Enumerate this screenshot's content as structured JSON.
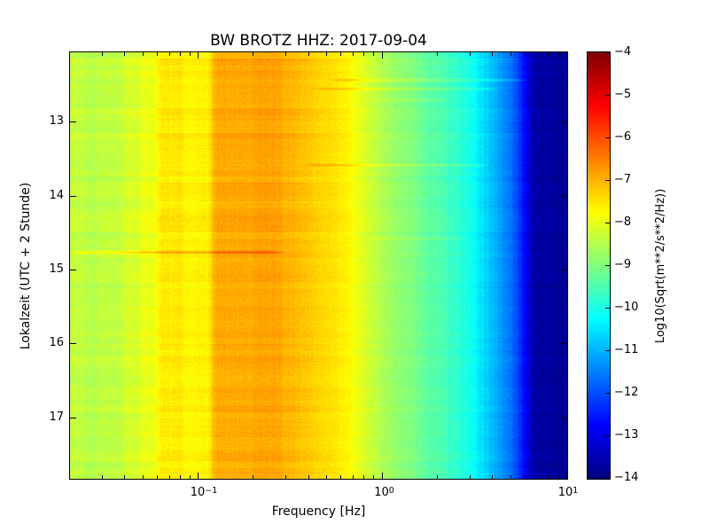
{
  "chart_data": {
    "type": "heatmap",
    "subtype": "seismic-spectrogram",
    "title": "BW BROTZ HHZ: 2017-09-04",
    "xlabel": "Frequency [Hz]",
    "ylabel": "Lokalzeit (UTC + 2 Stunde)",
    "x_scale": "log",
    "grid": false,
    "x_range_hz": [
      0.0202,
      10.22
    ],
    "y_range_localtime_hours": [
      12.06,
      17.83
    ],
    "x_ticks": [
      {
        "base": "10",
        "exp": "−1",
        "value": 0.1
      },
      {
        "base": "10",
        "exp": "0",
        "value": 1
      },
      {
        "base": "10",
        "exp": "1",
        "value": 10
      }
    ],
    "y_ticks": [
      {
        "label": "13",
        "value": 13
      },
      {
        "label": "14",
        "value": 14
      },
      {
        "label": "15",
        "value": 15
      },
      {
        "label": "16",
        "value": 16
      },
      {
        "label": "17",
        "value": 17
      }
    ],
    "colorbar": {
      "label": "Log10(Sqrt(m**2/s**2/Hz))",
      "colormap": "jet",
      "vmin": -14,
      "vmax": -4,
      "ticks": [
        {
          "label": "−4",
          "value": -4
        },
        {
          "label": "−5",
          "value": -5
        },
        {
          "label": "−6",
          "value": -6
        },
        {
          "label": "−7",
          "value": -7
        },
        {
          "label": "−8",
          "value": -8
        },
        {
          "label": "−9",
          "value": -9
        },
        {
          "label": "−10",
          "value": -10
        },
        {
          "label": "−11",
          "value": -11
        },
        {
          "label": "−12",
          "value": -12
        },
        {
          "label": "−13",
          "value": -13
        },
        {
          "label": "−14",
          "value": -14
        }
      ]
    },
    "spectrum_profile_log10hz_amp": [
      [
        -1.7,
        -8.3
      ],
      [
        -1.5,
        -8.4
      ],
      [
        -1.42,
        -8.35
      ],
      [
        -1.38,
        -8.05
      ],
      [
        -1.24,
        -8.0
      ],
      [
        -1.2,
        -7.65
      ],
      [
        -0.95,
        -7.55
      ],
      [
        -0.9,
        -7.0
      ],
      [
        -0.6,
        -6.85
      ],
      [
        -0.48,
        -6.95
      ],
      [
        -0.35,
        -7.3
      ],
      [
        -0.18,
        -7.7
      ],
      [
        0.0,
        -8.55
      ],
      [
        0.18,
        -9.1
      ],
      [
        0.3,
        -9.45
      ],
      [
        0.48,
        -10.1
      ],
      [
        0.6,
        -10.9
      ],
      [
        0.7,
        -11.6
      ],
      [
        0.76,
        -12.4
      ],
      [
        0.81,
        -13.5
      ],
      [
        0.86,
        -13.7
      ],
      [
        1.01,
        -13.75
      ]
    ],
    "transient_streaks": [
      {
        "time_hours": 12.43,
        "f_min_hz": 0.5,
        "f_max_hz": 6.5,
        "boost": 0.55
      },
      {
        "time_hours": 12.55,
        "f_min_hz": 0.4,
        "f_max_hz": 4.5,
        "boost": 0.45
      },
      {
        "time_hours": 12.7,
        "f_min_hz": 0.9,
        "f_max_hz": 2.5,
        "boost": 0.3
      },
      {
        "time_hours": 13.58,
        "f_min_hz": 0.35,
        "f_max_hz": 4.0,
        "boost": 0.5
      },
      {
        "time_hours": 14.57,
        "f_min_hz": 0.8,
        "f_max_hz": 3.0,
        "boost": 0.35
      },
      {
        "time_hours": 14.76,
        "f_min_hz": 0.02,
        "f_max_hz": 0.3,
        "boost": 0.75
      }
    ],
    "texture": {
      "pixel_noise": 0.13,
      "row_band": 0.09,
      "row_band_height": 7,
      "column_fine": 0.055,
      "column_fine_high": 0.11,
      "block_width": 16,
      "block_offset": 0.11,
      "seed": 77
    }
  }
}
